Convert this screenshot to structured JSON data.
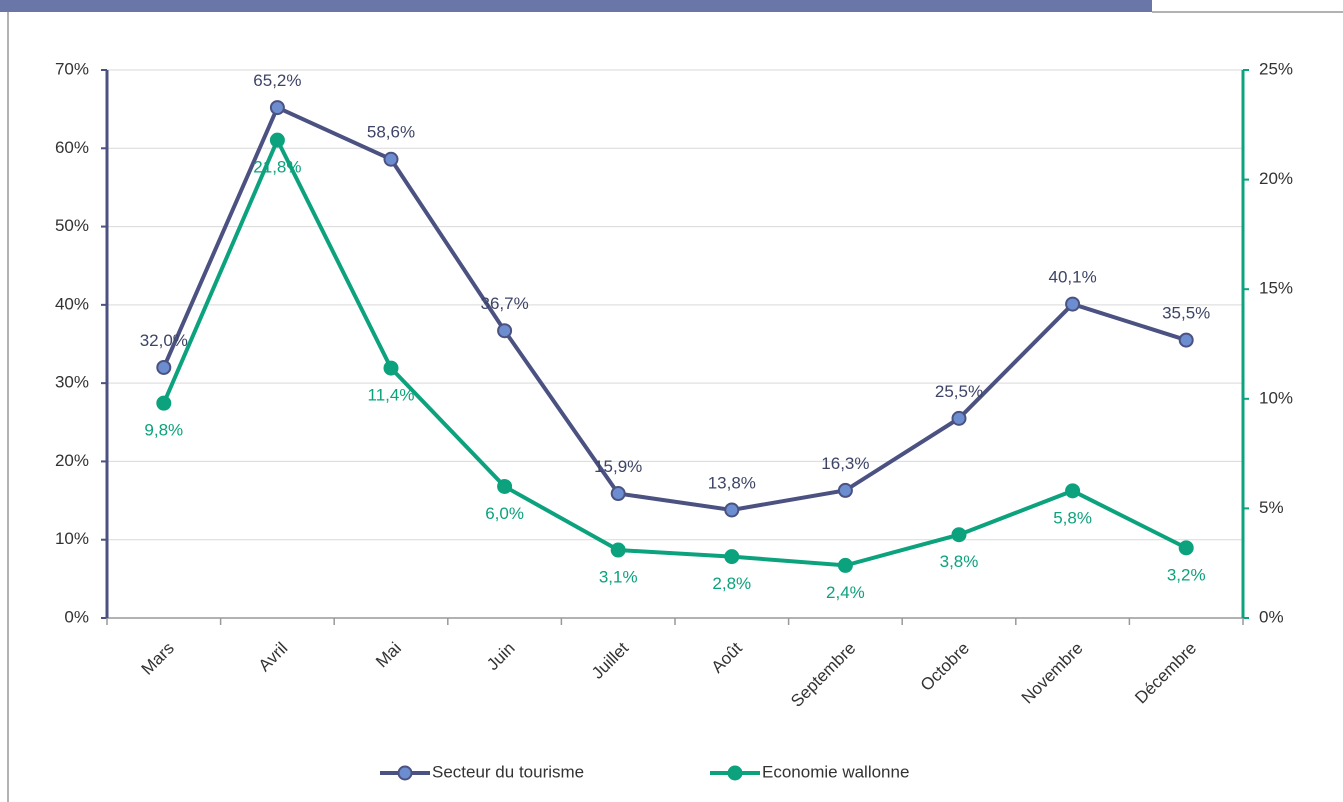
{
  "chart_data": {
    "type": "line",
    "categories": [
      "Mars",
      "Avril",
      "Mai",
      "Juin",
      "Juillet",
      "Août",
      "Septembre",
      "Octobre",
      "Novembre",
      "Décembre"
    ],
    "series": [
      {
        "name": "Secteur du tourisme",
        "color": "#4b5282",
        "values": [
          32.0,
          65.2,
          58.6,
          36.7,
          15.9,
          13.8,
          16.3,
          25.5,
          40.1,
          35.5
        ],
        "value_labels": [
          "32,0%",
          "65,2%",
          "58,6%",
          "36,7%",
          "15,9%",
          "13,8%",
          "16,3%",
          "25,5%",
          "40,1%",
          "35,5%"
        ]
      },
      {
        "name": "Economie wallonne",
        "color": "#0ba27d",
        "axis": "y2",
        "values": [
          9.8,
          21.8,
          11.4,
          6.0,
          3.1,
          2.8,
          2.4,
          3.8,
          5.8,
          3.2
        ],
        "value_labels": [
          "9,8%",
          "21,8%",
          "11,4%",
          "6,0%",
          "3,1%",
          "2,8%",
          "2,4%",
          "3,8%",
          "5,8%",
          "3,2%"
        ]
      }
    ],
    "ylim": [
      0,
      70
    ],
    "yticks": [
      {
        "value": 0,
        "label": "0%"
      },
      {
        "value": 10,
        "label": "10%"
      },
      {
        "value": 20,
        "label": "20%"
      },
      {
        "value": 30,
        "label": "30%"
      },
      {
        "value": 40,
        "label": "40%"
      },
      {
        "value": 50,
        "label": "50%"
      },
      {
        "value": 60,
        "label": "60%"
      },
      {
        "value": 70,
        "label": "70%"
      }
    ],
    "y2lim": [
      0,
      25
    ],
    "y2ticks": [
      {
        "value": 0,
        "label": "0%"
      },
      {
        "value": 5,
        "label": "5%"
      },
      {
        "value": 10,
        "label": "10%"
      },
      {
        "value": 15,
        "label": "15%"
      },
      {
        "value": 20,
        "label": "20%"
      },
      {
        "value": 25,
        "label": "25%"
      }
    ],
    "grid": true,
    "legend": "bottom"
  }
}
